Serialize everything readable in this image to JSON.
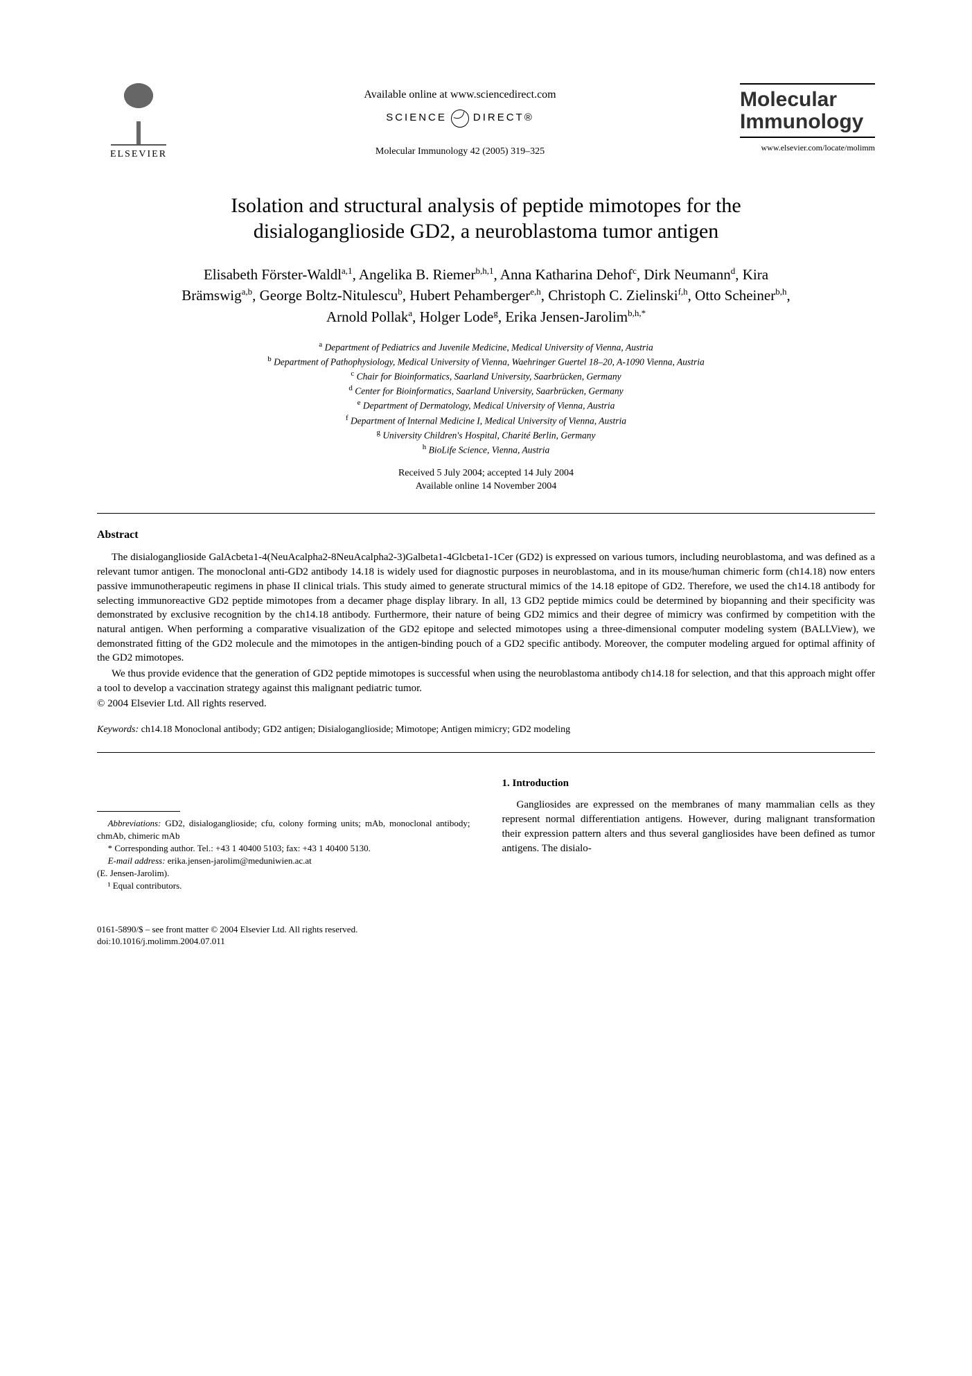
{
  "publisher": {
    "name": "ELSEVIER",
    "available_line": "Available online at www.sciencedirect.com",
    "science_direct_left": "SCIENCE",
    "science_direct_right": "DIRECT®",
    "citation": "Molecular Immunology 42 (2005) 319–325"
  },
  "journal": {
    "title_line1": "Molecular",
    "title_line2": "Immunology",
    "url": "www.elsevier.com/locate/molimm"
  },
  "article": {
    "title": "Isolation and structural analysis of peptide mimotopes for the disialoganglioside GD2, a neuroblastoma tumor antigen"
  },
  "authors_html": "Elisabeth Förster-Waldl<sup>a,1</sup>, Angelika B. Riemer<sup>b,h,1</sup>, Anna Katharina Dehof<sup>c</sup>, Dirk Neumann<sup>d</sup>, Kira Brämswig<sup>a,b</sup>, George Boltz-Nitulescu<sup>b</sup>, Hubert Pehamberger<sup>e,h</sup>, Christoph C. Zielinski<sup>f,h</sup>, Otto Scheiner<sup>b,h</sup>, Arnold Pollak<sup>a</sup>, Holger Lode<sup>g</sup>, Erika Jensen-Jarolim<sup>b,h,*</sup>",
  "affiliations": [
    {
      "marker": "a",
      "text": "Department of Pediatrics and Juvenile Medicine, Medical University of Vienna, Austria"
    },
    {
      "marker": "b",
      "text": "Department of Pathophysiology, Medical University of Vienna, Waehringer Guertel 18–20, A-1090 Vienna, Austria"
    },
    {
      "marker": "c",
      "text": "Chair for Bioinformatics, Saarland University, Saarbrücken, Germany"
    },
    {
      "marker": "d",
      "text": "Center for Bioinformatics, Saarland University, Saarbrücken, Germany"
    },
    {
      "marker": "e",
      "text": "Department of Dermatology, Medical University of Vienna, Austria"
    },
    {
      "marker": "f",
      "text": "Department of Internal Medicine I, Medical University of Vienna, Austria"
    },
    {
      "marker": "g",
      "text": "University Children's Hospital, Charité Berlin, Germany"
    },
    {
      "marker": "h",
      "text": "BioLife Science, Vienna, Austria"
    }
  ],
  "dates": {
    "received_accepted": "Received 5 July 2004; accepted 14 July 2004",
    "online": "Available online 14 November 2004"
  },
  "abstract": {
    "heading": "Abstract",
    "p1": "The disialoganglioside GalAcbeta1-4(NeuAcalpha2-8NeuAcalpha2-3)Galbeta1-4Glcbeta1-1Cer (GD2) is expressed on various tumors, including neuroblastoma, and was defined as a relevant tumor antigen. The monoclonal anti-GD2 antibody 14.18 is widely used for diagnostic purposes in neuroblastoma, and in its mouse/human chimeric form (ch14.18) now enters passive immunotherapeutic regimens in phase II clinical trials. This study aimed to generate structural mimics of the 14.18 epitope of GD2. Therefore, we used the ch14.18 antibody for selecting immunoreactive GD2 peptide mimotopes from a decamer phage display library. In all, 13 GD2 peptide mimics could be determined by biopanning and their specificity was demonstrated by exclusive recognition by the ch14.18 antibody. Furthermore, their nature of being GD2 mimics and their degree of mimicry was confirmed by competition with the natural antigen. When performing a comparative visualization of the GD2 epitope and selected mimotopes using a three-dimensional computer modeling system (BALLView), we demonstrated fitting of the GD2 molecule and the mimotopes in the antigen-binding pouch of a GD2 specific antibody. Moreover, the computer modeling argued for optimal affinity of the GD2 mimotopes.",
    "p2": "We thus provide evidence that the generation of GD2 peptide mimotopes is successful when using the neuroblastoma antibody ch14.18 for selection, and that this approach might offer a tool to develop a vaccination strategy against this malignant pediatric tumor.",
    "copyright": "© 2004 Elsevier Ltd. All rights reserved."
  },
  "keywords": {
    "label": "Keywords:",
    "text": " ch14.18 Monoclonal antibody; GD2 antigen; Disialoganglioside; Mimotope; Antigen mimicry; GD2 modeling"
  },
  "footnotes": {
    "abbrev_label": "Abbreviations:",
    "abbrev_text": " GD2, disialoganglioside; cfu, colony forming units; mAb, monoclonal antibody; chmAb, chimeric mAb",
    "corresponding": "* Corresponding author. Tel.: +43 1 40400 5103; fax: +43 1 40400 5130.",
    "email_label": "E-mail address:",
    "email_value": " erika.jensen-jarolim@meduniwien.ac.at",
    "email_person": "(E. Jensen-Jarolim).",
    "equal": "¹ Equal contributors."
  },
  "introduction": {
    "heading": "1. Introduction",
    "p1": "Gangliosides are expressed on the membranes of many mammalian cells as they represent normal differentiation antigens. However, during malignant transformation their expression pattern alters and thus several gangliosides have been defined as tumor antigens. The disialo-"
  },
  "footer": {
    "issn_line": "0161-5890/$ – see front matter © 2004 Elsevier Ltd. All rights reserved.",
    "doi_line": "doi:10.1016/j.molimm.2004.07.011"
  },
  "colors": {
    "text": "#000000",
    "background": "#ffffff",
    "journal_title": "#32302e"
  },
  "typography": {
    "body_family": "Times New Roman",
    "journal_family": "Arial",
    "title_fontsize_pt": 22,
    "author_fontsize_pt": 16,
    "body_fontsize_pt": 11,
    "affil_fontsize_pt": 10
  }
}
